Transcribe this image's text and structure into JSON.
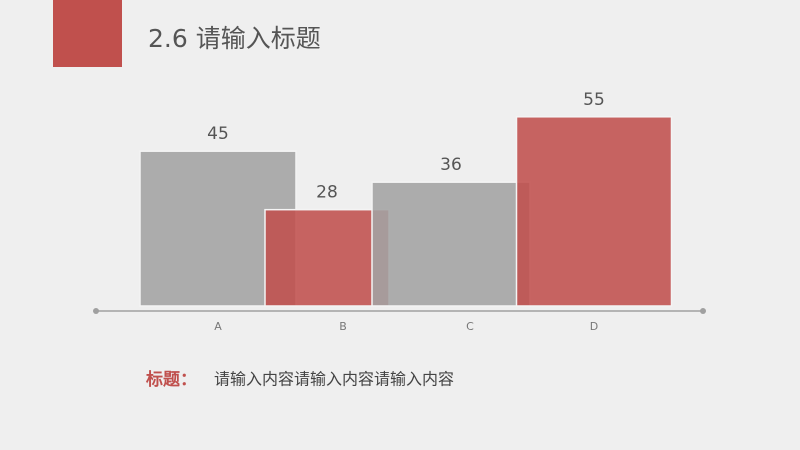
{
  "chart_data": {
    "type": "bar",
    "title": "2.6 请输入标题",
    "categories": [
      "A",
      "B",
      "C",
      "D"
    ],
    "values": [
      45,
      28,
      36,
      55
    ],
    "colors": [
      "#a3a3a3",
      "#c0504d",
      "#a3a3a3",
      "#c0504d"
    ],
    "caption_label": "标题：",
    "caption_text": "请输入内容请输入内容请输入内容"
  }
}
